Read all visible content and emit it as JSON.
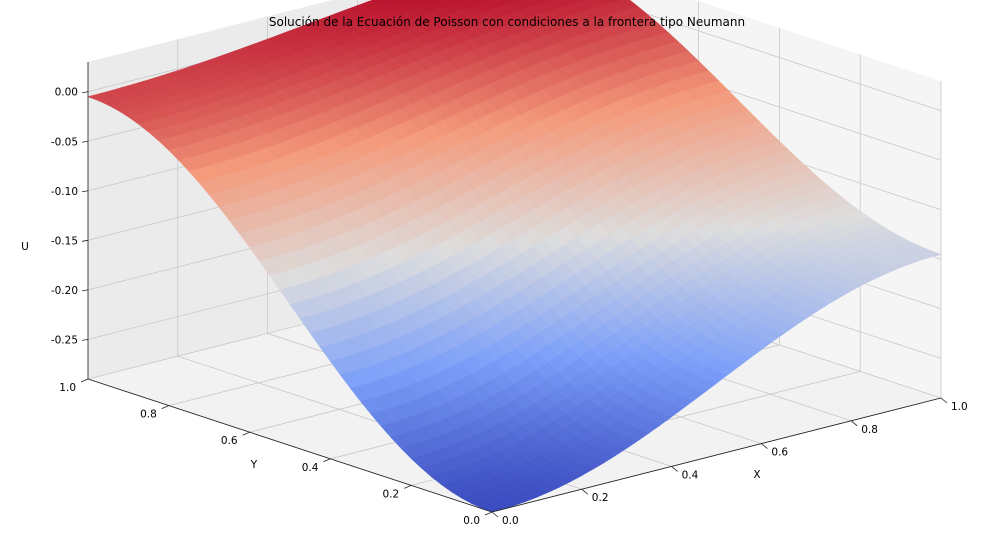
{
  "chart_data": {
    "type": "surface3d",
    "title": "Solución de la Ecuación de Poisson con condiciones a la frontera tipo Neumann",
    "xlabel": "X",
    "ylabel": "Y",
    "zlabel": "U",
    "x_ticks": [
      "0.0",
      "0.2",
      "0.4",
      "0.6",
      "0.8",
      "1.0"
    ],
    "y_ticks": [
      "0.0",
      "0.2",
      "0.4",
      "0.6",
      "0.8",
      "1.0"
    ],
    "z_ticks": [
      "0.00",
      "-0.05",
      "-0.10",
      "-0.15",
      "-0.20",
      "-0.25"
    ],
    "x_range": [
      0,
      1
    ],
    "y_range": [
      0,
      1
    ],
    "z_range": [
      -0.29,
      0.03
    ],
    "colormap": "coolwarm",
    "grid": true,
    "surface_corner_values": {
      "x0_y0": -0.29,
      "x1_y0": -0.145,
      "x0_y1": -0.005,
      "x1_y1": 0.03
    }
  }
}
